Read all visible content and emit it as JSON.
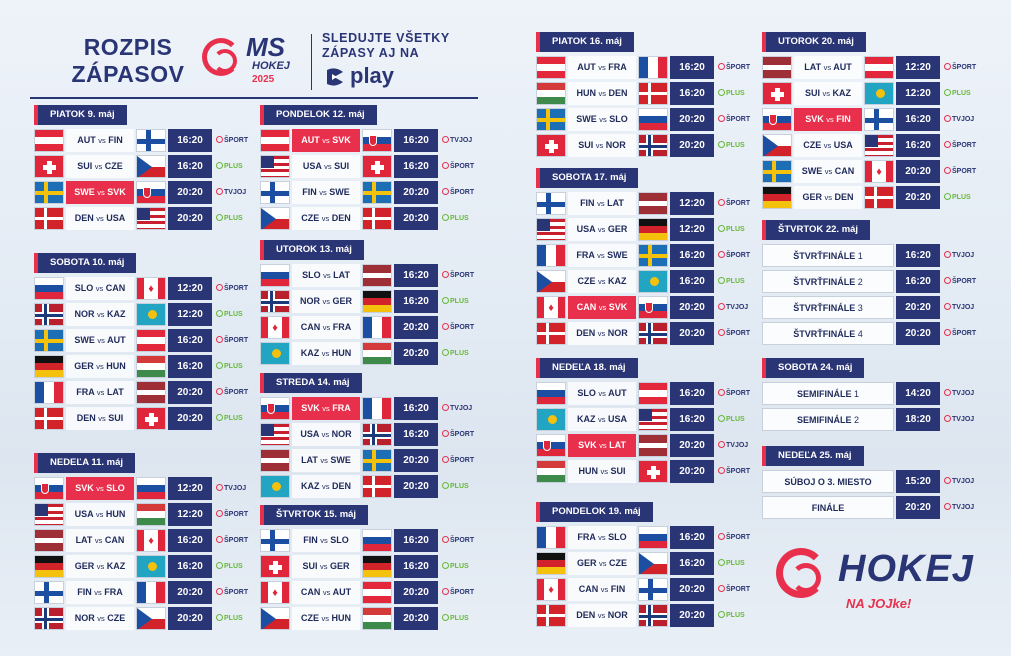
{
  "header": {
    "title_line1": "ROZPIS",
    "title_line2": "ZÁPASOV",
    "ms_logo": "MS",
    "ms_sub": "HOKEJ",
    "ms_year": "2025",
    "watch_line1": "SLEDUJTE VŠETKY",
    "watch_line2": "ZÁPASY AJ NA",
    "play_label": "play"
  },
  "vs_label": "vs",
  "channels": {
    "sport": "ŠPORT",
    "plus": "PLUS",
    "tvjoj": "TVJOJ"
  },
  "colors": {
    "navy": "#2a3575",
    "accent_red": "#e8304d",
    "plus_green": "#67b83a"
  },
  "days": [
    {
      "label": "PIATOK 9. máj",
      "matches": [
        {
          "home": "AUT",
          "away": "FIN",
          "time": "16:20",
          "tv": "sport",
          "sk": false
        },
        {
          "home": "SUI",
          "away": "CZE",
          "time": "16:20",
          "tv": "plus",
          "sk": false
        },
        {
          "home": "SWE",
          "away": "SVK",
          "time": "20:20",
          "tv": "tvjoj",
          "sk": true
        },
        {
          "home": "DEN",
          "away": "USA",
          "time": "20:20",
          "tv": "plus",
          "sk": false
        }
      ]
    },
    {
      "label": "SOBOTA 10. máj",
      "matches": [
        {
          "home": "SLO",
          "away": "CAN",
          "time": "12:20",
          "tv": "sport",
          "sk": false
        },
        {
          "home": "NOR",
          "away": "KAZ",
          "time": "12:20",
          "tv": "plus",
          "sk": false
        },
        {
          "home": "SWE",
          "away": "AUT",
          "time": "16:20",
          "tv": "sport",
          "sk": false
        },
        {
          "home": "GER",
          "away": "HUN",
          "time": "16:20",
          "tv": "plus",
          "sk": false
        },
        {
          "home": "FRA",
          "away": "LAT",
          "time": "20:20",
          "tv": "sport",
          "sk": false
        },
        {
          "home": "DEN",
          "away": "SUI",
          "time": "20:20",
          "tv": "plus",
          "sk": false
        }
      ]
    },
    {
      "label": "NEDEĽA 11. máj",
      "matches": [
        {
          "home": "SVK",
          "away": "SLO",
          "time": "12:20",
          "tv": "tvjoj",
          "sk": true
        },
        {
          "home": "USA",
          "away": "HUN",
          "time": "12:20",
          "tv": "sport",
          "sk": false
        },
        {
          "home": "LAT",
          "away": "CAN",
          "time": "16:20",
          "tv": "sport",
          "sk": false
        },
        {
          "home": "GER",
          "away": "KAZ",
          "time": "16:20",
          "tv": "plus",
          "sk": false
        },
        {
          "home": "FIN",
          "away": "FRA",
          "time": "20:20",
          "tv": "sport",
          "sk": false
        },
        {
          "home": "NOR",
          "away": "CZE",
          "time": "20:20",
          "tv": "plus",
          "sk": false
        }
      ]
    },
    {
      "label": "PONDELOK 12. máj",
      "matches": [
        {
          "home": "AUT",
          "away": "SVK",
          "time": "16:20",
          "tv": "tvjoj",
          "sk": true
        },
        {
          "home": "USA",
          "away": "SUI",
          "time": "16:20",
          "tv": "sport",
          "sk": false
        },
        {
          "home": "FIN",
          "away": "SWE",
          "time": "20:20",
          "tv": "sport",
          "sk": false
        },
        {
          "home": "CZE",
          "away": "DEN",
          "time": "20:20",
          "tv": "plus",
          "sk": false
        }
      ]
    },
    {
      "label": "UTOROK 13. máj",
      "matches": [
        {
          "home": "SLO",
          "away": "LAT",
          "time": "16:20",
          "tv": "sport",
          "sk": false
        },
        {
          "home": "NOR",
          "away": "GER",
          "time": "16:20",
          "tv": "plus",
          "sk": false
        },
        {
          "home": "CAN",
          "away": "FRA",
          "time": "20:20",
          "tv": "sport",
          "sk": false
        },
        {
          "home": "KAZ",
          "away": "HUN",
          "time": "20:20",
          "tv": "plus",
          "sk": false
        }
      ]
    },
    {
      "label": "STREDA 14. máj",
      "matches": [
        {
          "home": "SVK",
          "away": "FRA",
          "time": "16:20",
          "tv": "tvjoj",
          "sk": true
        },
        {
          "home": "USA",
          "away": "NOR",
          "time": "16:20",
          "tv": "sport",
          "sk": false
        },
        {
          "home": "LAT",
          "away": "SWE",
          "time": "20:20",
          "tv": "sport",
          "sk": false
        },
        {
          "home": "KAZ",
          "away": "DEN",
          "time": "20:20",
          "tv": "plus",
          "sk": false
        }
      ]
    },
    {
      "label": "ŠTVRTOK 15. máj",
      "matches": [
        {
          "home": "FIN",
          "away": "SLO",
          "time": "16:20",
          "tv": "sport",
          "sk": false
        },
        {
          "home": "SUI",
          "away": "GER",
          "time": "16:20",
          "tv": "plus",
          "sk": false
        },
        {
          "home": "CAN",
          "away": "AUT",
          "time": "20:20",
          "tv": "sport",
          "sk": false
        },
        {
          "home": "CZE",
          "away": "HUN",
          "time": "20:20",
          "tv": "plus",
          "sk": false
        }
      ]
    },
    {
      "label": "PIATOK 16. máj",
      "matches": [
        {
          "home": "AUT",
          "away": "FRA",
          "time": "16:20",
          "tv": "sport",
          "sk": false
        },
        {
          "home": "HUN",
          "away": "DEN",
          "time": "16:20",
          "tv": "plus",
          "sk": false
        },
        {
          "home": "SWE",
          "away": "SLO",
          "time": "20:20",
          "tv": "sport",
          "sk": false
        },
        {
          "home": "SUI",
          "away": "NOR",
          "time": "20:20",
          "tv": "plus",
          "sk": false
        }
      ]
    },
    {
      "label": "SOBOTA 17. máj",
      "matches": [
        {
          "home": "FIN",
          "away": "LAT",
          "time": "12:20",
          "tv": "sport",
          "sk": false
        },
        {
          "home": "USA",
          "away": "GER",
          "time": "12:20",
          "tv": "plus",
          "sk": false
        },
        {
          "home": "FRA",
          "away": "SWE",
          "time": "16:20",
          "tv": "sport",
          "sk": false
        },
        {
          "home": "CZE",
          "away": "KAZ",
          "time": "16:20",
          "tv": "plus",
          "sk": false
        },
        {
          "home": "CAN",
          "away": "SVK",
          "time": "20:20",
          "tv": "tvjoj",
          "sk": true
        },
        {
          "home": "DEN",
          "away": "NOR",
          "time": "20:20",
          "tv": "sport",
          "sk": false
        }
      ]
    },
    {
      "label": "NEDEĽA 18. máj",
      "matches": [
        {
          "home": "SLO",
          "away": "AUT",
          "time": "16:20",
          "tv": "sport",
          "sk": false
        },
        {
          "home": "KAZ",
          "away": "USA",
          "time": "16:20",
          "tv": "plus",
          "sk": false
        },
        {
          "home": "SVK",
          "away": "LAT",
          "time": "20:20",
          "tv": "tvjoj",
          "sk": true
        },
        {
          "home": "HUN",
          "away": "SUI",
          "time": "20:20",
          "tv": "sport",
          "sk": false
        }
      ]
    },
    {
      "label": "PONDELOK 19. máj",
      "matches": [
        {
          "home": "FRA",
          "away": "SLO",
          "time": "16:20",
          "tv": "sport",
          "sk": false
        },
        {
          "home": "GER",
          "away": "CZE",
          "time": "16:20",
          "tv": "plus",
          "sk": false
        },
        {
          "home": "CAN",
          "away": "FIN",
          "time": "20:20",
          "tv": "sport",
          "sk": false
        },
        {
          "home": "DEN",
          "away": "NOR",
          "time": "20:20",
          "tv": "plus",
          "sk": false
        }
      ]
    },
    {
      "label": "UTOROK 20. máj",
      "matches": [
        {
          "home": "LAT",
          "away": "AUT",
          "time": "12:20",
          "tv": "sport",
          "sk": false
        },
        {
          "home": "SUI",
          "away": "KAZ",
          "time": "12:20",
          "tv": "plus",
          "sk": false
        },
        {
          "home": "SVK",
          "away": "FIN",
          "time": "16:20",
          "tv": "tvjoj",
          "sk": true
        },
        {
          "home": "CZE",
          "away": "USA",
          "time": "16:20",
          "tv": "sport",
          "sk": false
        },
        {
          "home": "SWE",
          "away": "CAN",
          "time": "20:20",
          "tv": "sport",
          "sk": false
        },
        {
          "home": "GER",
          "away": "DEN",
          "time": "20:20",
          "tv": "plus",
          "sk": false
        }
      ]
    },
    {
      "label": "ŠTVRTOK 22. máj",
      "stages": [
        {
          "name": "ŠTVRŤFINÁLE",
          "num": "1",
          "time": "16:20",
          "tv": "tvjoj"
        },
        {
          "name": "ŠTVRŤFINÁLE",
          "num": "2",
          "time": "16:20",
          "tv": "sport"
        },
        {
          "name": "ŠTVRŤFINÁLE",
          "num": "3",
          "time": "20:20",
          "tv": "tvjoj"
        },
        {
          "name": "ŠTVRŤFINÁLE",
          "num": "4",
          "time": "20:20",
          "tv": "sport"
        }
      ]
    },
    {
      "label": "SOBOTA 24. máj",
      "stages": [
        {
          "name": "SEMIFINÁLE",
          "num": "1",
          "time": "14:20",
          "tv": "tvjoj"
        },
        {
          "name": "SEMIFINÁLE",
          "num": "2",
          "time": "18:20",
          "tv": "tvjoj"
        }
      ]
    },
    {
      "label": "NEDEĽA 25. máj",
      "stages": [
        {
          "name": "SÚBOJ O 3. MIESTO",
          "num": "",
          "time": "15:20",
          "tv": "tvjoj"
        },
        {
          "name": "FINÁLE",
          "num": "",
          "time": "20:20",
          "tv": "tvjoj"
        }
      ]
    }
  ],
  "footer_logo": {
    "text": "HOKEJ",
    "sub": "NA JOJke!"
  }
}
